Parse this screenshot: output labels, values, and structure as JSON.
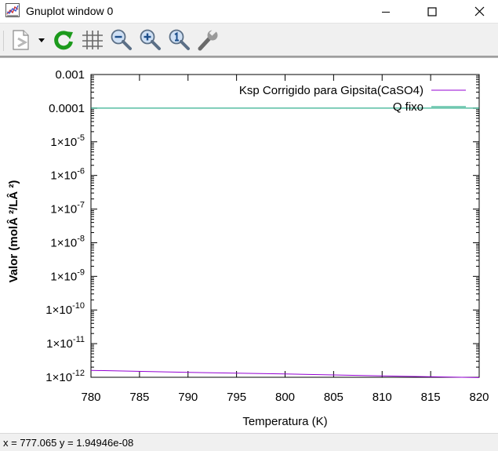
{
  "window": {
    "title": "Gnuplot window 0",
    "minimize_glyph": "—",
    "maximize_glyph": "☐",
    "close_glyph": "✕"
  },
  "toolbar": {
    "items": [
      {
        "name": "copy-to-clipboard-icon"
      },
      {
        "name": "dropdown-arrow-icon"
      },
      {
        "name": "replot-icon"
      },
      {
        "name": "grid-icon"
      },
      {
        "name": "zoom-previous-icon"
      },
      {
        "name": "zoom-next-icon"
      },
      {
        "name": "unzoom-icon"
      },
      {
        "name": "options-wrench-icon"
      }
    ]
  },
  "status": {
    "text": "x = 777.065 y = 1.94946e-08"
  },
  "chart_data": {
    "type": "line",
    "title": "",
    "xlabel": "Temperatura (K)",
    "ylabel": "Valor (molÂ ²/LÂ ²)",
    "xlim": [
      780,
      820
    ],
    "ylim": [
      1e-12,
      0.001
    ],
    "yscale": "log",
    "grid": false,
    "legend_position": "top-right",
    "x_ticks": [
      "780",
      "785",
      "790",
      "795",
      "800",
      "805",
      "810",
      "815",
      "820"
    ],
    "y_ticks": [
      {
        "mantissa": "",
        "exp": "",
        "plain": "1×10",
        "sup": "-12"
      },
      {
        "plain": "1×10",
        "sup": "-11"
      },
      {
        "plain": "1×10",
        "sup": "-10"
      },
      {
        "plain": "1×10",
        "sup": "-9"
      },
      {
        "plain": "1×10",
        "sup": "-8"
      },
      {
        "plain": "1×10",
        "sup": "-7"
      },
      {
        "plain": "1×10",
        "sup": "-6"
      },
      {
        "plain": "1×10",
        "sup": "-5"
      },
      {
        "plain": "0.0001",
        "sup": ""
      },
      {
        "plain": "0.001",
        "sup": ""
      }
    ],
    "series": [
      {
        "name": "Ksp Corrigido para Gipsita(CaSO4)",
        "color": "#9400d3",
        "x": [
          780,
          790,
          800,
          810,
          820
        ],
        "y": [
          1.6e-12,
          1.4e-12,
          1.25e-12,
          1.1e-12,
          9.8e-13
        ]
      },
      {
        "name": "Q fixo",
        "color": "#009e73",
        "x": [
          780,
          820
        ],
        "y": [
          0.0001,
          0.0001
        ]
      }
    ]
  }
}
